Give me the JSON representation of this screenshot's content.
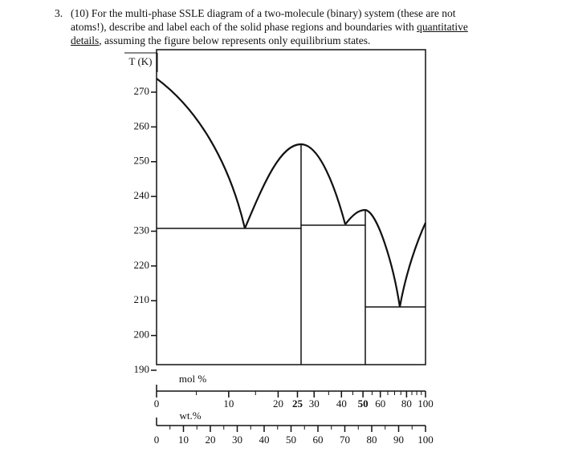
{
  "question": {
    "number": "3.",
    "points": "(10)",
    "text_before": "For the multi-phase SSLE diagram of a two-molecule (binary) system (these are not atoms!), describe and label each of the solid phase regions and boundaries with ",
    "underlined": "quantitative details",
    "text_after": ", assuming the figure below represents only equilibrium states."
  },
  "figure": {
    "y_label": "T (K)",
    "y_ticks": [
      270,
      260,
      250,
      240,
      230,
      220,
      210,
      200,
      190
    ],
    "mol_label": "mol %",
    "mol_ticks": [
      0,
      10,
      20,
      25,
      30,
      40,
      50,
      60,
      80,
      100
    ],
    "mol_bold_ticks": [
      25,
      50
    ],
    "wt_label": "wt.%",
    "wt_ticks": [
      0,
      10,
      20,
      30,
      40,
      50,
      60,
      70,
      80,
      90,
      100
    ]
  }
}
